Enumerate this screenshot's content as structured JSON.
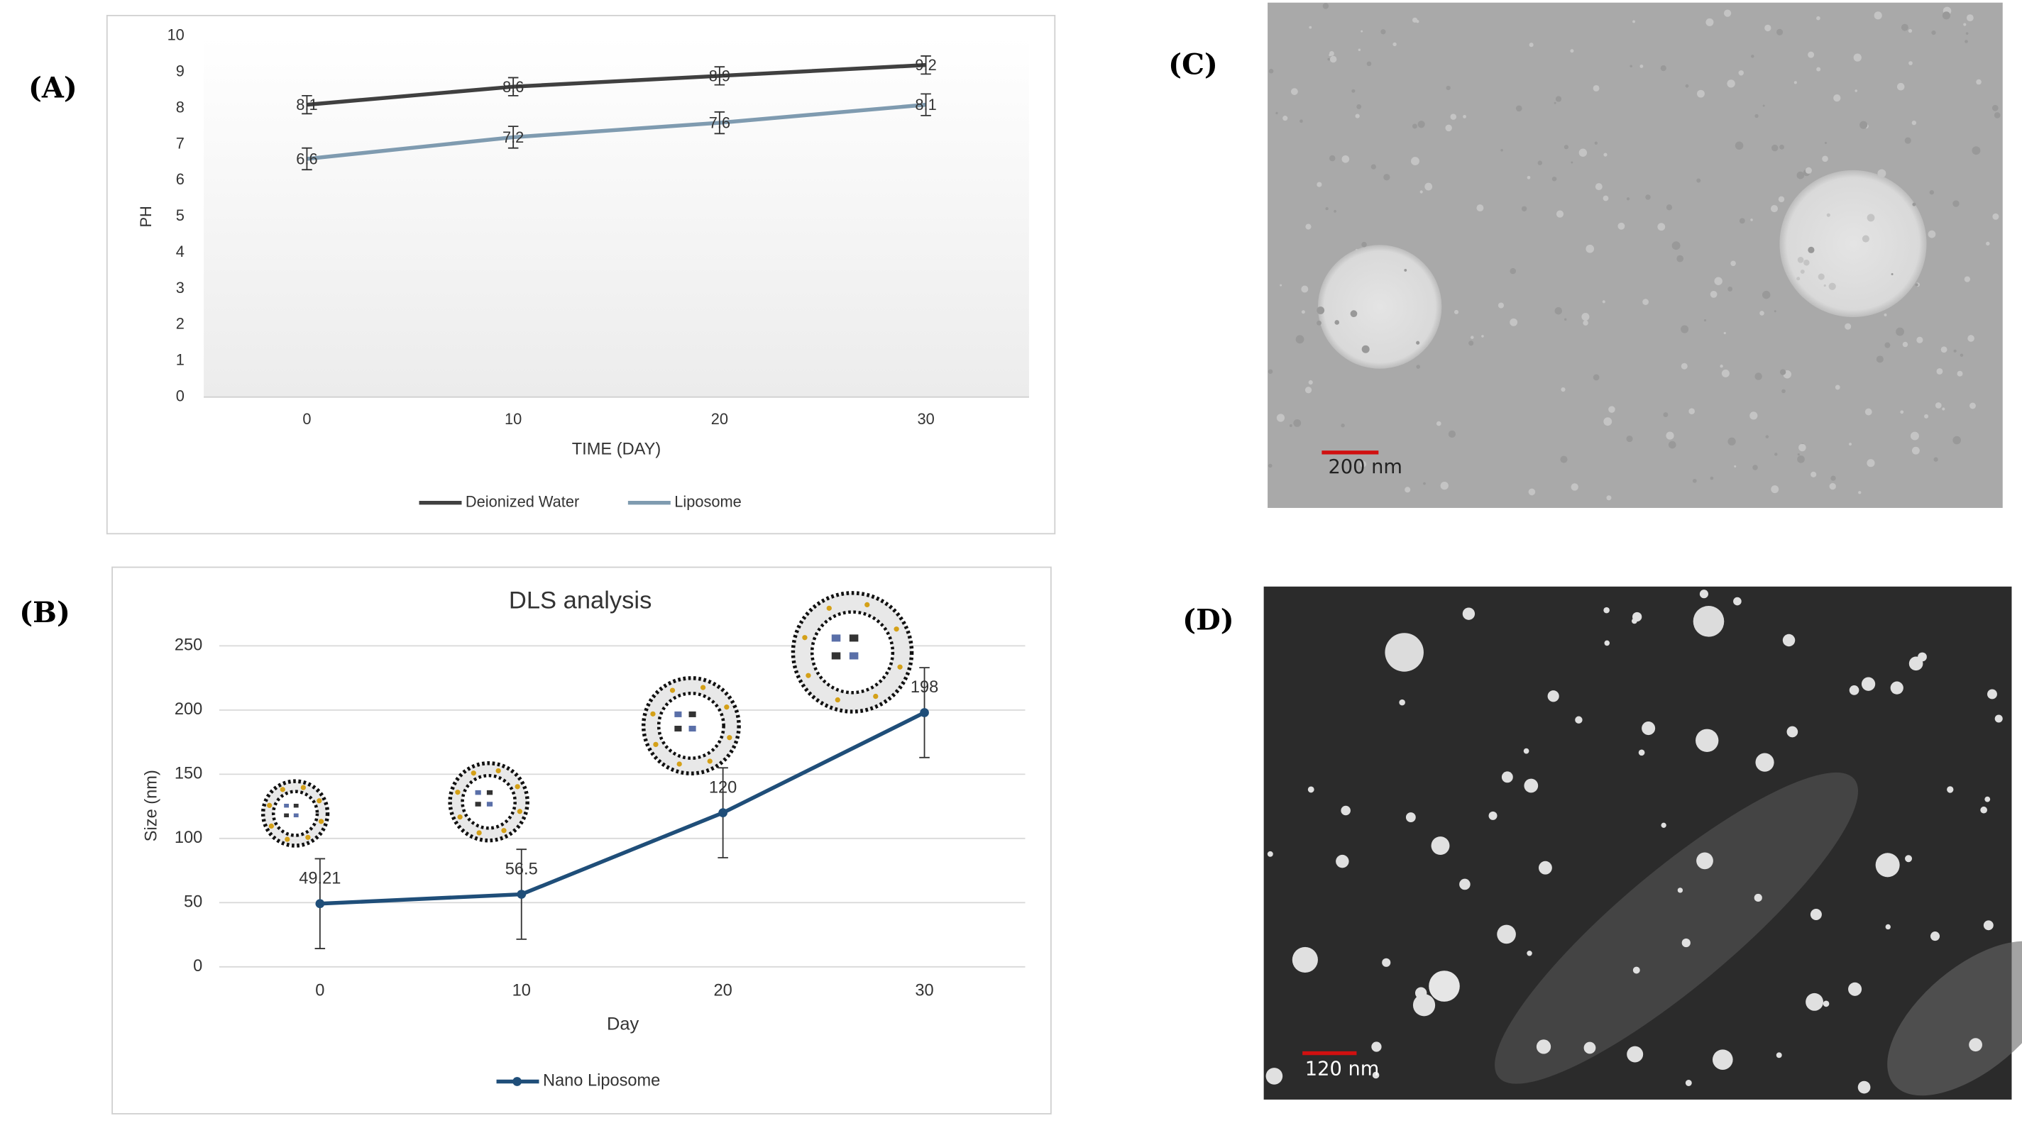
{
  "chart_data": [
    {
      "type": "line",
      "panel_label": "(A)",
      "x_label": "TIME (DAY)",
      "y_label": "PH",
      "x": [
        0,
        10,
        20,
        30
      ],
      "xlim": [
        -5,
        35
      ],
      "xticks": [
        0,
        10,
        20,
        30
      ],
      "ylim": [
        0,
        10
      ],
      "yticks": [
        0,
        1,
        2,
        3,
        4,
        5,
        6,
        7,
        8,
        9,
        10
      ],
      "grid": false,
      "legend": "bottom",
      "series": [
        {
          "name": "Deionized Water",
          "color": "#404040",
          "values": [
            8.1,
            8.6,
            8.9,
            9.2
          ],
          "errors": [
            0.25,
            0.25,
            0.25,
            0.25
          ]
        },
        {
          "name": "Liposome",
          "color": "#7f9bb0",
          "values": [
            6.6,
            7.2,
            7.6,
            8.1
          ],
          "errors": [
            0.3,
            0.3,
            0.3,
            0.3
          ]
        }
      ]
    },
    {
      "type": "line",
      "panel_label": "(B)",
      "title": "DLS analysis",
      "x_label": "Day",
      "y_label": "Size (nm)",
      "x": [
        0,
        10,
        20,
        30
      ],
      "xlim": [
        -5,
        35
      ],
      "xticks": [
        0,
        10,
        20,
        30
      ],
      "ylim": [
        0,
        250
      ],
      "yticks": [
        0,
        50,
        100,
        150,
        200,
        250
      ],
      "grid": true,
      "legend": "bottom",
      "markers": true,
      "series": [
        {
          "name": "Nano Liposome",
          "color": "#1f4e79",
          "values": [
            49.21,
            56.5,
            120,
            198
          ],
          "errors": [
            35,
            35,
            35,
            35
          ]
        }
      ]
    }
  ],
  "micrographs": [
    {
      "panel_label": "(C)",
      "scale_bar": "200 nm"
    },
    {
      "panel_label": "(D)",
      "scale_bar": "120 nm"
    }
  ]
}
